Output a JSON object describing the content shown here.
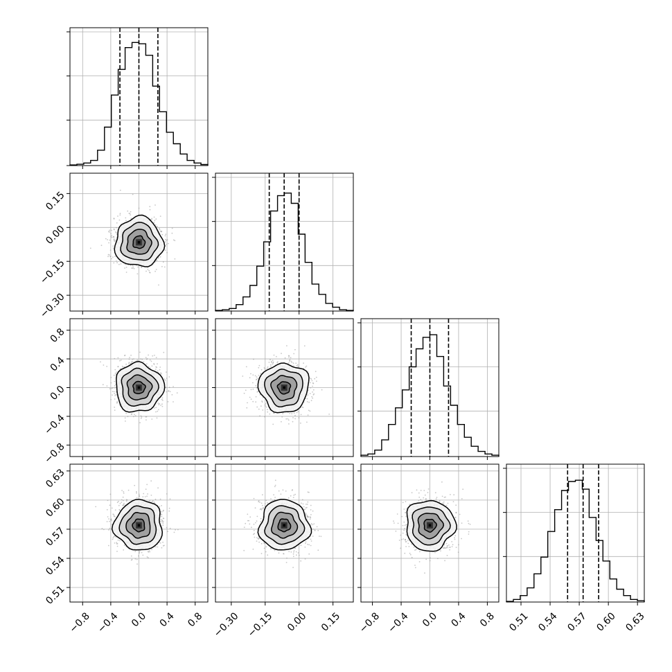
{
  "chart_data": {
    "type": "corner",
    "grid": true,
    "colors": {
      "points": "#999999",
      "lines": "#000000",
      "grid": "#b0b0b0",
      "background": "#ffffff"
    },
    "parameters": [
      {
        "ticks": [
          -0.8,
          -0.4,
          0.0,
          0.4,
          0.8
        ],
        "tick_labels": [
          "−0.8",
          "−0.4",
          "0.0",
          "0.4",
          "0.8"
        ],
        "range": [
          -0.98,
          0.98
        ],
        "quantiles": [
          -0.27,
          0.0,
          0.27
        ]
      },
      {
        "ticks": [
          -0.3,
          -0.15,
          0.0,
          0.15
        ],
        "tick_labels": [
          "−0.30",
          "−0.15",
          "0.00",
          "0.15"
        ],
        "range": [
          -0.37,
          0.24
        ],
        "quantiles": [
          -0.132,
          -0.066,
          0.0
        ]
      },
      {
        "ticks": [
          -0.8,
          -0.4,
          0.0,
          0.4,
          0.8
        ],
        "tick_labels": [
          "−0.8",
          "−0.4",
          "0.0",
          "0.4",
          "0.8"
        ],
        "range": [
          -0.96,
          0.96
        ],
        "quantiles": [
          -0.26,
          0.0,
          0.26
        ]
      },
      {
        "ticks": [
          0.51,
          0.54,
          0.57,
          0.6,
          0.63
        ],
        "tick_labels": [
          "0.51",
          "0.54",
          "0.57",
          "0.60",
          "0.63"
        ],
        "range": [
          0.495,
          0.637
        ],
        "quantiles": [
          0.558,
          0.574,
          0.59
        ]
      }
    ],
    "histograms": [
      [
        0.005,
        0.01,
        0.02,
        0.04,
        0.12,
        0.3,
        0.55,
        0.75,
        0.92,
        0.96,
        0.95,
        0.86,
        0.62,
        0.42,
        0.26,
        0.17,
        0.09,
        0.04,
        0.02,
        0.008
      ],
      [
        0.005,
        0.01,
        0.02,
        0.05,
        0.11,
        0.2,
        0.35,
        0.54,
        0.78,
        0.9,
        0.92,
        0.84,
        0.6,
        0.38,
        0.21,
        0.13,
        0.06,
        0.03,
        0.01,
        0.005
      ],
      [
        0.01,
        0.02,
        0.05,
        0.13,
        0.25,
        0.38,
        0.52,
        0.7,
        0.84,
        0.93,
        0.95,
        0.78,
        0.55,
        0.4,
        0.25,
        0.15,
        0.08,
        0.04,
        0.02,
        0.01
      ],
      [
        0.005,
        0.02,
        0.05,
        0.11,
        0.22,
        0.35,
        0.55,
        0.72,
        0.87,
        0.94,
        0.95,
        0.88,
        0.66,
        0.48,
        0.32,
        0.18,
        0.1,
        0.05,
        0.02,
        0.01
      ]
    ],
    "pairs": [
      {
        "x_param": 0,
        "y_param": 1,
        "mean": [
          0.0,
          -0.066
        ],
        "sd": [
          0.17,
          0.055
        ],
        "rho": 0.0
      },
      {
        "x_param": 0,
        "y_param": 2,
        "mean": [
          0.0,
          0.0
        ],
        "sd": [
          0.17,
          0.17
        ],
        "rho": 0.0
      },
      {
        "x_param": 1,
        "y_param": 2,
        "mean": [
          -0.066,
          0.0
        ],
        "sd": [
          0.055,
          0.17
        ],
        "rho": 0.0
      },
      {
        "x_param": 0,
        "y_param": 3,
        "mean": [
          0.0,
          0.574
        ],
        "sd": [
          0.17,
          0.013
        ],
        "rho": 0.0
      },
      {
        "x_param": 1,
        "y_param": 3,
        "mean": [
          -0.066,
          0.574
        ],
        "sd": [
          0.055,
          0.013
        ],
        "rho": 0.05
      },
      {
        "x_param": 2,
        "y_param": 3,
        "mean": [
          0.0,
          0.574
        ],
        "sd": [
          0.17,
          0.013
        ],
        "rho": 0.0
      }
    ],
    "contour_levels_sigma": [
      0.5,
      1.0,
      1.5,
      2.0
    ]
  }
}
